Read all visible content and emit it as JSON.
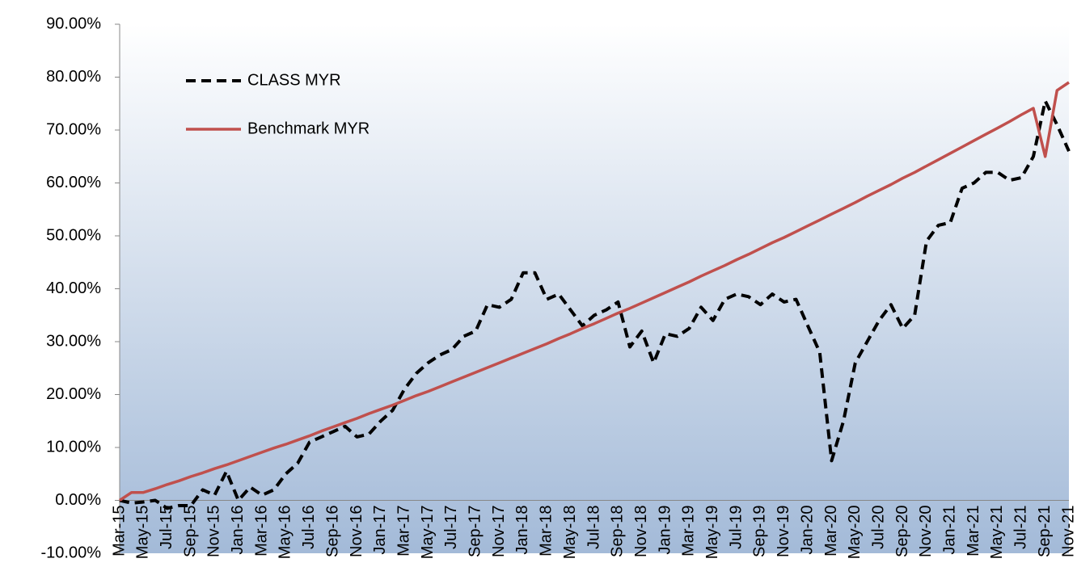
{
  "chart_data": {
    "type": "line",
    "categories": [
      "Mar-15",
      null,
      "May-15",
      null,
      "Jul-15",
      null,
      "Sep-15",
      null,
      "Nov-15",
      null,
      "Jan-16",
      null,
      "Mar-16",
      null,
      "May-16",
      null,
      "Jul-16",
      null,
      "Sep-16",
      null,
      "Nov-16",
      null,
      "Jan-17",
      null,
      "Mar-17",
      null,
      "May-17",
      null,
      "Jul-17",
      null,
      "Sep-17",
      null,
      "Nov-17",
      null,
      "Jan-18",
      null,
      "Mar-18",
      null,
      "May-18",
      null,
      "Jul-18",
      null,
      "Sep-18",
      null,
      "Nov-18",
      null,
      "Jan-19",
      null,
      "Mar-19",
      null,
      "May-19",
      null,
      "Jul-19",
      null,
      "Sep-19",
      null,
      "Nov-19",
      null,
      "Jan-20",
      null,
      "Mar-20",
      null,
      "May-20",
      null,
      "Jul-20",
      null,
      "Sep-20",
      null,
      "Nov-20",
      null,
      "Jan-21",
      null,
      "Mar-21",
      null,
      "May-21",
      null,
      "Jul-21",
      null,
      "Sep-21",
      null,
      "Nov-21"
    ],
    "series": [
      {
        "name": "CLASS MYR",
        "color": "#000000",
        "dashed": true,
        "values": [
          0,
          -0.5,
          -0.3,
          0,
          -1.5,
          -1,
          -1,
          2,
          1,
          5.5,
          0,
          2.5,
          1,
          2,
          5,
          7,
          11,
          12,
          13,
          14,
          12,
          12.5,
          15,
          17,
          21,
          24,
          26,
          27.5,
          28.5,
          31,
          32,
          37,
          36.5,
          38,
          43,
          43,
          38,
          39,
          36,
          33,
          35,
          36,
          37.5,
          29,
          32,
          26,
          31.5,
          31,
          32.5,
          36.5,
          34,
          38,
          39,
          38.5,
          37,
          39,
          37.5,
          38,
          33,
          28,
          7.5,
          15,
          26,
          30,
          34,
          37,
          32.5,
          35,
          49,
          52,
          52.5,
          59,
          60,
          62,
          62,
          60.5,
          61,
          65,
          75.5,
          71,
          66
        ]
      },
      {
        "name": "Benchmark MYR",
        "color": "#c0504d",
        "dashed": false,
        "values": [
          0,
          1.5,
          1.5,
          2.2,
          3,
          3.7,
          4.5,
          5.2,
          6,
          6.7,
          7.5,
          8.3,
          9.1,
          9.9,
          10.6,
          11.4,
          12.2,
          13.1,
          13.9,
          14.7,
          15.5,
          16.4,
          17.2,
          18,
          18.9,
          19.8,
          20.6,
          21.5,
          22.4,
          23.3,
          24.2,
          25.1,
          26,
          26.9,
          27.8,
          28.7,
          29.6,
          30.6,
          31.5,
          32.5,
          33.4,
          34.4,
          35.4,
          36.3,
          37.3,
          38.3,
          39.3,
          40.3,
          41.3,
          42.4,
          43.4,
          44.4,
          45.5,
          46.5,
          47.6,
          48.7,
          49.7,
          50.8,
          51.9,
          53,
          54.1,
          55.2,
          56.3,
          57.5,
          58.6,
          59.7,
          60.9,
          62,
          63.2,
          64.4,
          65.6,
          66.8,
          68,
          69.2,
          70.4,
          71.6,
          72.9,
          74.1,
          65,
          77.5,
          79
        ]
      }
    ],
    "ylim": [
      -10,
      90
    ],
    "yticks": [
      {
        "value": -10,
        "label": "-10.00%"
      },
      {
        "value": 0,
        "label": "0.00%"
      },
      {
        "value": 10,
        "label": "10.00%"
      },
      {
        "value": 20,
        "label": "20.00%"
      },
      {
        "value": 30,
        "label": "30.00%"
      },
      {
        "value": 40,
        "label": "40.00%"
      },
      {
        "value": 50,
        "label": "50.00%"
      },
      {
        "value": 60,
        "label": "60.00%"
      },
      {
        "value": 70,
        "label": "70.00%"
      },
      {
        "value": 80,
        "label": "80.00%"
      },
      {
        "value": 90,
        "label": "90.00%"
      }
    ],
    "legend": "upper left"
  }
}
